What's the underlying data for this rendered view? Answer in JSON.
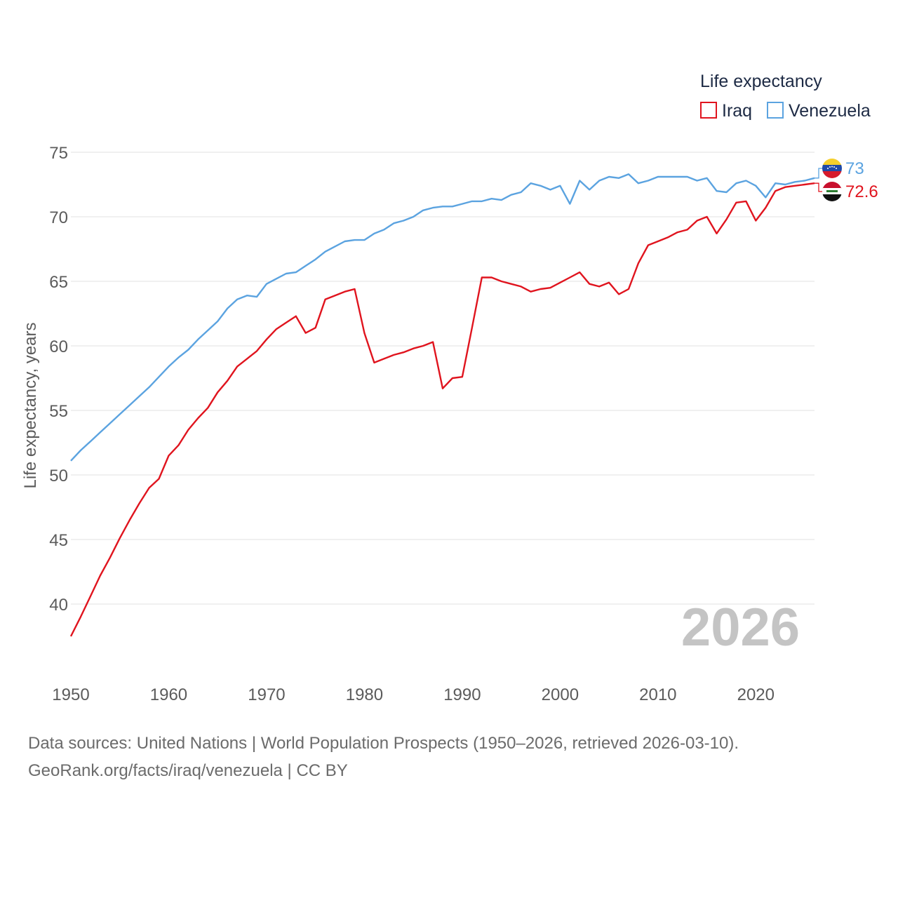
{
  "chart_data": {
    "type": "line",
    "title": "",
    "ylabel": "Life expectancy, years",
    "xlabel": "",
    "xlim": [
      1950,
      2026
    ],
    "ylim": [
      35,
      75
    ],
    "yticks": [
      40,
      45,
      50,
      55,
      60,
      65,
      70,
      75
    ],
    "xticks": [
      1950,
      1960,
      1970,
      1980,
      1990,
      2000,
      2010,
      2020
    ],
    "legend": {
      "title": "Life expectancy",
      "position": "top-right"
    },
    "current_year_label": "2026",
    "x": [
      1950,
      1951,
      1952,
      1953,
      1954,
      1955,
      1956,
      1957,
      1958,
      1959,
      1960,
      1961,
      1962,
      1963,
      1964,
      1965,
      1966,
      1967,
      1968,
      1969,
      1970,
      1971,
      1972,
      1973,
      1974,
      1975,
      1976,
      1977,
      1978,
      1979,
      1980,
      1981,
      1982,
      1983,
      1984,
      1985,
      1986,
      1987,
      1988,
      1989,
      1990,
      1991,
      1992,
      1993,
      1994,
      1995,
      1996,
      1997,
      1998,
      1999,
      2000,
      2001,
      2002,
      2003,
      2004,
      2005,
      2006,
      2007,
      2008,
      2009,
      2010,
      2011,
      2012,
      2013,
      2014,
      2015,
      2016,
      2017,
      2018,
      2019,
      2020,
      2021,
      2022,
      2023,
      2024,
      2025,
      2026
    ],
    "series": [
      {
        "name": "Iraq",
        "color": "#e0141e",
        "end_label": "72.6",
        "values": [
          37.5,
          39.0,
          40.6,
          42.2,
          43.6,
          45.1,
          46.5,
          47.8,
          49.0,
          49.7,
          51.5,
          52.3,
          53.5,
          54.4,
          55.2,
          56.4,
          57.3,
          58.4,
          59.0,
          59.6,
          60.5,
          61.3,
          61.8,
          62.3,
          61.0,
          61.4,
          63.6,
          63.9,
          64.2,
          64.4,
          61.0,
          58.7,
          59.0,
          59.3,
          59.5,
          59.8,
          60.0,
          60.3,
          56.7,
          57.5,
          57.6,
          61.4,
          65.3,
          65.3,
          65.0,
          64.8,
          64.6,
          64.2,
          64.4,
          64.5,
          64.9,
          65.3,
          65.7,
          64.8,
          64.6,
          64.9,
          64.0,
          64.4,
          66.4,
          67.8,
          68.1,
          68.4,
          68.8,
          69.0,
          69.7,
          70.0,
          68.7,
          69.8,
          71.1,
          71.2,
          69.7,
          70.7,
          72.0,
          72.3,
          72.4,
          72.5,
          72.6
        ]
      },
      {
        "name": "Venezuela",
        "color": "#5ba3e0",
        "end_label": "73",
        "values": [
          51.1,
          51.9,
          52.6,
          53.3,
          54.0,
          54.7,
          55.4,
          56.1,
          56.8,
          57.6,
          58.4,
          59.1,
          59.7,
          60.5,
          61.2,
          61.9,
          62.9,
          63.6,
          63.9,
          63.8,
          64.8,
          65.2,
          65.6,
          65.7,
          66.2,
          66.7,
          67.3,
          67.7,
          68.1,
          68.2,
          68.2,
          68.7,
          69.0,
          69.5,
          69.7,
          70.0,
          70.5,
          70.7,
          70.8,
          70.8,
          71.0,
          71.2,
          71.2,
          71.4,
          71.3,
          71.7,
          71.9,
          72.6,
          72.4,
          72.1,
          72.4,
          71.0,
          72.8,
          72.1,
          72.8,
          73.1,
          73.0,
          73.3,
          72.6,
          72.8,
          73.1,
          73.1,
          73.1,
          73.1,
          72.8,
          73.0,
          72.0,
          71.9,
          72.6,
          72.8,
          72.4,
          71.5,
          72.6,
          72.5,
          72.7,
          72.8,
          73.0
        ]
      }
    ]
  },
  "source": {
    "line1": "Data sources: United Nations | World Population Prospects (1950–2026, retrieved 2026-03-10).",
    "line2": "GeoRank.org/facts/iraq/venezuela | CC BY"
  },
  "flags": {
    "venezuela": "venezuela-flag-icon",
    "iraq": "iraq-flag-icon"
  }
}
